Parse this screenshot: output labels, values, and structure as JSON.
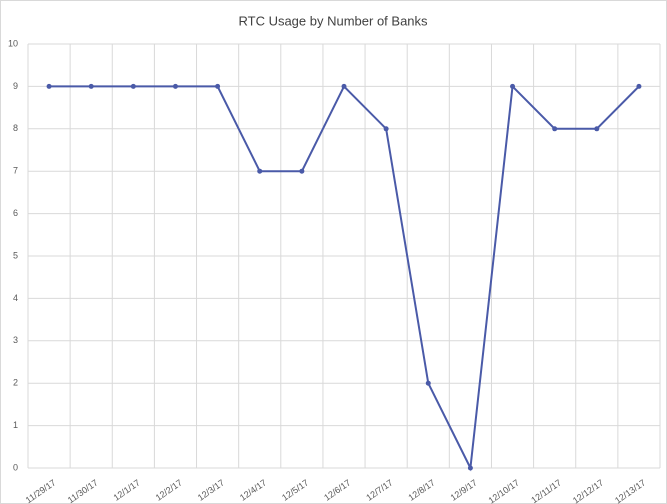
{
  "chart_data": {
    "type": "line",
    "title": "RTC Usage by Number of Banks",
    "categories": [
      "11/29/17",
      "11/30/17",
      "12/1/17",
      "12/2/17",
      "12/3/17",
      "12/4/17",
      "12/5/17",
      "12/6/17",
      "12/7/17",
      "12/8/17",
      "12/9/17",
      "12/10/17",
      "12/11/17",
      "12/12/17",
      "12/13/17"
    ],
    "series": [
      {
        "name": "Number of Banks",
        "color": "#4a5aa8",
        "values": [
          9,
          9,
          9,
          9,
          9,
          7,
          7,
          9,
          8,
          2,
          0,
          9,
          8,
          8,
          9
        ]
      }
    ],
    "ylim": [
      0,
      10
    ],
    "yticks": [
      0,
      1,
      2,
      3,
      4,
      5,
      6,
      7,
      8,
      9,
      10
    ],
    "grid": true
  }
}
